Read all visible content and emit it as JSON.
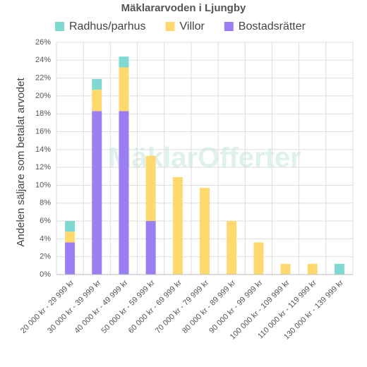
{
  "chart_data": {
    "type": "stacked_bar",
    "title": "Mäklararvoden i Ljungby",
    "watermark": "MäklarOfferter",
    "y_label": "Andelen säljare som betalat arvodet",
    "categories": [
      "20 000 kr - 29 999 kr",
      "30 000 kr - 39 999 kr",
      "40 000 kr - 49 999 kr",
      "50 000 kr - 59 999 kr",
      "60 000 kr - 69 999 kr",
      "70 000 kr - 79 999 kr",
      "80 000 kr - 89 999 kr",
      "90 000 kr - 99 999 kr",
      "100 000 kr - 109 999 kr",
      "110 000 kr - 119 999 kr",
      "130 000 kr - 139 999 kr"
    ],
    "series": [
      {
        "name": "Bostadsrätter",
        "color": "#9b7ff2",
        "values": [
          3.6,
          18.3,
          18.3,
          6.0,
          0,
          0,
          0,
          0,
          0,
          0,
          0
        ]
      },
      {
        "name": "Villor",
        "color": "#ffd86e",
        "values": [
          1.2,
          2.4,
          4.9,
          7.3,
          10.9,
          9.7,
          6.0,
          3.6,
          1.2,
          1.2,
          0
        ]
      },
      {
        "name": "Radhus/parhus",
        "color": "#7fd9d0",
        "values": [
          1.2,
          1.2,
          1.2,
          0,
          0,
          0,
          0,
          0,
          0,
          0,
          1.2
        ]
      }
    ],
    "legend_order": [
      2,
      1,
      0
    ],
    "ylim": [
      0,
      26
    ],
    "yticks": [
      {
        "value": 0,
        "label": "0%"
      },
      {
        "value": 2,
        "label": "2%"
      },
      {
        "value": 4,
        "label": "4%"
      },
      {
        "value": 6,
        "label": "6%"
      },
      {
        "value": 8,
        "label": "8%"
      },
      {
        "value": 10,
        "label": "10%"
      },
      {
        "value": 12,
        "label": "12%"
      },
      {
        "value": 14,
        "label": "14%"
      },
      {
        "value": 16,
        "label": "16%"
      },
      {
        "value": 18,
        "label": "18%"
      },
      {
        "value": 20,
        "label": "20%"
      },
      {
        "value": 22,
        "label": "22%"
      },
      {
        "value": 24,
        "label": "24%"
      },
      {
        "value": 26,
        "label": "26%"
      }
    ],
    "grid": true
  }
}
